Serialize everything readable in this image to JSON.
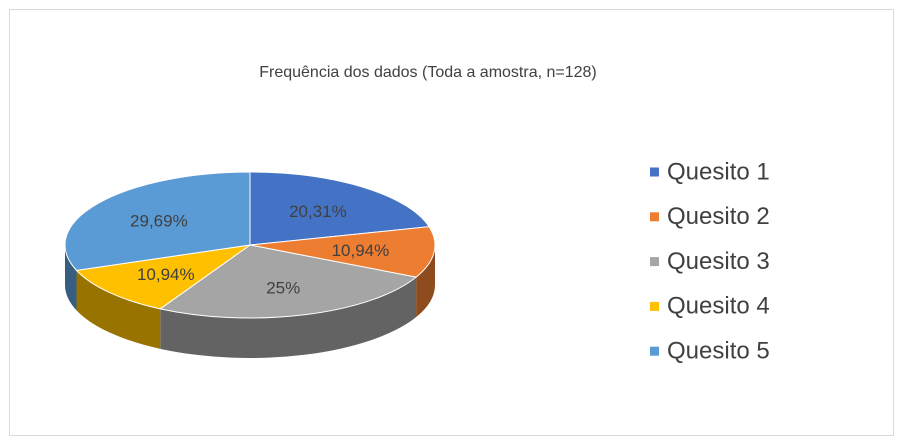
{
  "chart_data": {
    "type": "pie",
    "title": "Frequência dos dados (Toda a amostra, n=128)",
    "categories": [
      "Quesito 1",
      "Quesito 2",
      "Quesito 3",
      "Quesito 4",
      "Quesito 5"
    ],
    "values": [
      20.31,
      10.94,
      25,
      10.94,
      29.69
    ],
    "value_labels": [
      "20,31%",
      "10,94%",
      "25%",
      "10,94%",
      "29,69%"
    ],
    "colors": [
      "#4472c4",
      "#ed7d31",
      "#a5a5a5",
      "#ffc000",
      "#5b9bd5"
    ],
    "legend": "right"
  }
}
